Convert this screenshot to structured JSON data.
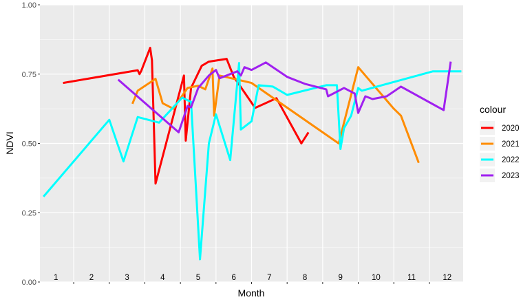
{
  "chart_data": {
    "type": "line",
    "xlabel": "Month",
    "ylabel": "NDVI",
    "xlim": [
      0.55,
      12.45
    ],
    "ylim": [
      0,
      1
    ],
    "yticks": [
      "0.00",
      "0.25",
      "0.50",
      "0.75",
      "1.00"
    ],
    "month_labels": [
      "1",
      "2",
      "3",
      "4",
      "5",
      "6",
      "7",
      "8",
      "9",
      "10",
      "11",
      "12"
    ],
    "legend": {
      "title": "colour",
      "position": "right"
    },
    "grid": true,
    "series": [
      {
        "name": "2020",
        "color": "#ff0000",
        "points": [
          [
            1.2,
            0.718
          ],
          [
            3.3,
            0.764
          ],
          [
            3.35,
            0.75
          ],
          [
            3.4,
            0.762
          ],
          [
            3.65,
            0.845
          ],
          [
            3.7,
            0.8
          ],
          [
            3.8,
            0.355
          ],
          [
            4.6,
            0.745
          ],
          [
            4.65,
            0.51
          ],
          [
            4.8,
            0.7
          ],
          [
            5.1,
            0.78
          ],
          [
            5.3,
            0.795
          ],
          [
            5.8,
            0.805
          ],
          [
            6.0,
            0.74
          ],
          [
            6.6,
            0.628
          ],
          [
            7.2,
            0.663
          ],
          [
            7.9,
            0.5
          ],
          [
            8.1,
            0.54
          ]
        ]
      },
      {
        "name": "2021",
        "color": "#ff8c00",
        "points": [
          [
            3.15,
            0.643
          ],
          [
            3.3,
            0.69
          ],
          [
            3.8,
            0.733
          ],
          [
            4.0,
            0.645
          ],
          [
            4.3,
            0.625
          ],
          [
            4.7,
            0.7
          ],
          [
            5.0,
            0.708
          ],
          [
            5.2,
            0.695
          ],
          [
            5.4,
            0.77
          ],
          [
            5.45,
            0.6
          ],
          [
            5.6,
            0.745
          ],
          [
            6.5,
            0.718
          ],
          [
            8.95,
            0.5
          ],
          [
            9.5,
            0.775
          ],
          [
            10.5,
            0.625
          ],
          [
            10.7,
            0.6
          ],
          [
            11.2,
            0.43
          ]
        ]
      },
      {
        "name": "2022",
        "color": "#00ffff",
        "points": [
          [
            0.65,
            0.308
          ],
          [
            2.5,
            0.585
          ],
          [
            2.9,
            0.435
          ],
          [
            3.3,
            0.595
          ],
          [
            3.9,
            0.575
          ],
          [
            4.55,
            0.665
          ],
          [
            4.8,
            0.65
          ],
          [
            5.05,
            0.082
          ],
          [
            5.3,
            0.5
          ],
          [
            5.5,
            0.605
          ],
          [
            5.9,
            0.44
          ],
          [
            6.15,
            0.79
          ],
          [
            6.2,
            0.55
          ],
          [
            6.5,
            0.58
          ],
          [
            6.7,
            0.71
          ],
          [
            7.1,
            0.705
          ],
          [
            7.5,
            0.675
          ],
          [
            8.6,
            0.71
          ],
          [
            8.9,
            0.71
          ],
          [
            9.0,
            0.48
          ],
          [
            9.1,
            0.555
          ],
          [
            9.3,
            0.6
          ],
          [
            9.5,
            0.7
          ],
          [
            9.6,
            0.69
          ],
          [
            11.6,
            0.76
          ],
          [
            12.4,
            0.76
          ]
        ]
      },
      {
        "name": "2023",
        "color": "#a020f0",
        "points": [
          [
            2.75,
            0.73
          ],
          [
            4.45,
            0.54
          ],
          [
            4.7,
            0.635
          ],
          [
            4.8,
            0.63
          ],
          [
            5.0,
            0.7
          ],
          [
            5.3,
            0.745
          ],
          [
            5.5,
            0.765
          ],
          [
            5.6,
            0.735
          ],
          [
            6.1,
            0.76
          ],
          [
            6.2,
            0.745
          ],
          [
            6.3,
            0.775
          ],
          [
            6.5,
            0.765
          ],
          [
            6.9,
            0.792
          ],
          [
            7.5,
            0.74
          ],
          [
            8.0,
            0.715
          ],
          [
            8.6,
            0.695
          ],
          [
            8.65,
            0.67
          ],
          [
            9.1,
            0.7
          ],
          [
            9.4,
            0.68
          ],
          [
            9.5,
            0.61
          ],
          [
            9.7,
            0.67
          ],
          [
            9.9,
            0.66
          ],
          [
            10.3,
            0.67
          ],
          [
            10.7,
            0.705
          ],
          [
            11.9,
            0.62
          ],
          [
            12.1,
            0.795
          ]
        ]
      }
    ]
  }
}
